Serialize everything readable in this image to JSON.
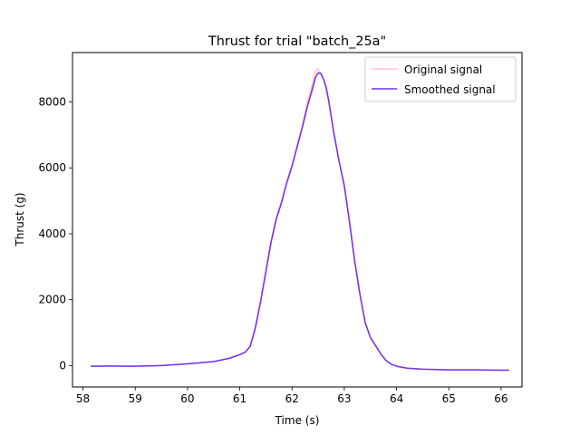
{
  "chart_data": {
    "type": "line",
    "title": "Thrust for trial \"batch_25a\"",
    "xlabel": "Time (s)",
    "ylabel": "Thrust (g)",
    "xlim": [
      57.8,
      66.4
    ],
    "ylim": [
      -650,
      9500
    ],
    "xticks": [
      58,
      59,
      60,
      61,
      62,
      63,
      64,
      65,
      66
    ],
    "yticks": [
      0,
      2000,
      4000,
      6000,
      8000
    ],
    "grid": false,
    "legend_position": "top-right",
    "series": [
      {
        "name": "Original signal",
        "color": "#ffc0cb",
        "x": [
          58.15,
          58.5,
          59.0,
          59.5,
          60.0,
          60.2,
          60.5,
          60.8,
          61.0,
          61.1,
          61.2,
          61.3,
          61.4,
          61.5,
          61.6,
          61.7,
          61.8,
          61.9,
          62.0,
          62.1,
          62.2,
          62.3,
          62.4,
          62.45,
          62.5,
          62.55,
          62.6,
          62.65,
          62.7,
          62.8,
          62.9,
          63.0,
          63.1,
          63.2,
          63.3,
          63.4,
          63.5,
          63.6,
          63.7,
          63.8,
          63.9,
          64.0,
          64.2,
          64.5,
          65.0,
          65.5,
          66.0,
          66.15
        ],
        "y": [
          -20,
          -15,
          -20,
          0,
          50,
          80,
          120,
          220,
          330,
          400,
          600,
          1200,
          2000,
          2900,
          3800,
          4500,
          5000,
          5600,
          6100,
          6700,
          7300,
          8050,
          8600,
          8950,
          9000,
          8850,
          8700,
          8500,
          8100,
          7100,
          6200,
          5500,
          4400,
          3200,
          2200,
          1300,
          850,
          600,
          350,
          150,
          40,
          -20,
          -80,
          -110,
          -130,
          -130,
          -140,
          -140
        ]
      },
      {
        "name": "Smoothed signal",
        "color": "#7030f0",
        "x": [
          58.15,
          58.5,
          59.0,
          59.5,
          60.0,
          60.2,
          60.5,
          60.8,
          61.0,
          61.1,
          61.2,
          61.3,
          61.4,
          61.5,
          61.6,
          61.7,
          61.8,
          61.9,
          62.0,
          62.1,
          62.2,
          62.3,
          62.4,
          62.45,
          62.5,
          62.55,
          62.6,
          62.65,
          62.7,
          62.8,
          62.9,
          63.0,
          63.1,
          63.2,
          63.3,
          63.4,
          63.5,
          63.6,
          63.7,
          63.8,
          63.9,
          64.0,
          64.2,
          64.5,
          65.0,
          65.5,
          66.0,
          66.15
        ],
        "y": [
          -20,
          -15,
          -20,
          0,
          50,
          80,
          120,
          220,
          330,
          400,
          580,
          1150,
          1950,
          2850,
          3750,
          4450,
          4950,
          5550,
          6050,
          6650,
          7250,
          7900,
          8450,
          8750,
          8880,
          8870,
          8700,
          8450,
          8050,
          7050,
          6200,
          5450,
          4350,
          3150,
          2150,
          1300,
          850,
          600,
          350,
          150,
          40,
          -20,
          -80,
          -110,
          -130,
          -130,
          -140,
          -140
        ]
      }
    ]
  }
}
